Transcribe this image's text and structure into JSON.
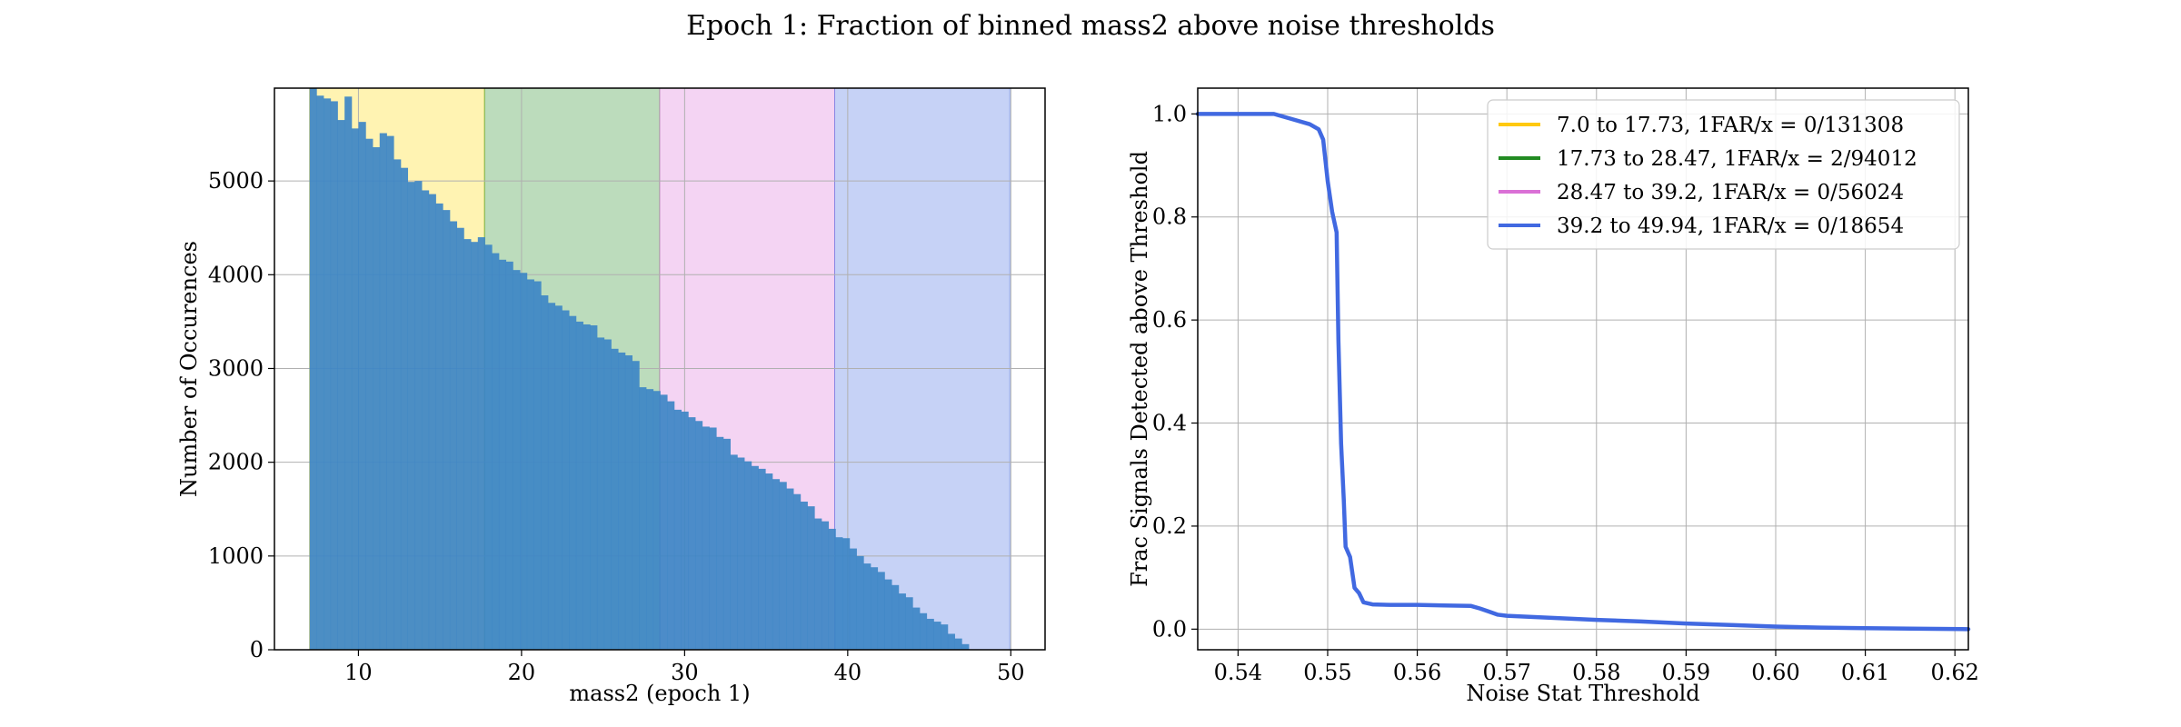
{
  "figure": {
    "title": "Epoch 1: Fraction of binned mass2 above noise thresholds"
  },
  "chart_data": [
    {
      "type": "bar",
      "xlabel": "mass2 (epoch 1)",
      "ylabel": "Number of Occurences",
      "xlim": [
        4.85,
        52.1
      ],
      "ylim": [
        0,
        5990
      ],
      "xticks": [
        10,
        20,
        30,
        40,
        50
      ],
      "yticks": [
        0,
        1000,
        2000,
        3000,
        4000,
        5000
      ],
      "grid": true,
      "bins": [
        {
          "range": [
            7.0,
            17.73
          ],
          "color": "#FFD700"
        },
        {
          "range": [
            17.73,
            28.47
          ],
          "color": "#228B22"
        },
        {
          "range": [
            28.47,
            39.2
          ],
          "color": "#DA70D6"
        },
        {
          "range": [
            39.2,
            49.94
          ],
          "color": "#4169E1"
        }
      ],
      "hist_color": "#3d85c6",
      "bin_edges_start": 7.0,
      "bin_width": 0.43,
      "counts": [
        5990,
        5910,
        5880,
        5850,
        5650,
        5900,
        5560,
        5630,
        5450,
        5360,
        5510,
        5480,
        5230,
        5140,
        4990,
        5000,
        4900,
        4860,
        4760,
        4690,
        4570,
        4500,
        4380,
        4350,
        4400,
        4320,
        4230,
        4160,
        4140,
        4050,
        4020,
        3950,
        3930,
        3780,
        3700,
        3670,
        3620,
        3560,
        3500,
        3470,
        3460,
        3330,
        3310,
        3210,
        3170,
        3140,
        3080,
        2800,
        2780,
        2760,
        2720,
        2650,
        2560,
        2540,
        2480,
        2440,
        2380,
        2370,
        2270,
        2250,
        2080,
        2050,
        2010,
        1960,
        1930,
        1880,
        1820,
        1790,
        1720,
        1660,
        1580,
        1530,
        1400,
        1370,
        1290,
        1200,
        1190,
        1080,
        1000,
        920,
        880,
        830,
        750,
        690,
        600,
        560,
        450,
        390,
        330,
        300,
        270,
        170,
        120,
        60
      ]
    },
    {
      "type": "line",
      "xlabel": "Noise Stat Threshold",
      "ylabel": "Frac Signals Detected above Threshold",
      "xlim": [
        0.5355,
        0.6215
      ],
      "ylim": [
        -0.04,
        1.05
      ],
      "xticks": [
        0.54,
        0.55,
        0.56,
        0.57,
        0.58,
        0.59,
        0.6,
        0.61,
        0.62
      ],
      "xtick_labels": [
        "0.54",
        "0.55",
        "0.56",
        "0.57",
        "0.58",
        "0.59",
        "0.60",
        "0.61",
        "0.62"
      ],
      "yticks": [
        0.0,
        0.2,
        0.4,
        0.6,
        0.8,
        1.0
      ],
      "ytick_labels": [
        "0.0",
        "0.2",
        "0.4",
        "0.6",
        "0.8",
        "1.0"
      ],
      "grid": true,
      "legend_position": "top-right",
      "series": [
        {
          "name": "7.0 to 17.73, 1FAR/x = 0/131308",
          "color": "#FFC90E",
          "x": [
            0.5355,
            0.6215
          ],
          "y": [
            1.0,
            0.0
          ]
        },
        {
          "name": "17.73 to 28.47, 1FAR/x = 2/94012",
          "color": "#228B22",
          "x": [
            0.5355,
            0.6215
          ],
          "y": [
            1.0,
            0.0
          ]
        },
        {
          "name": "28.47 to 39.2, 1FAR/x = 0/56024",
          "color": "#DA70D6",
          "x": [
            0.5355,
            0.6215
          ],
          "y": [
            1.0,
            0.0
          ]
        },
        {
          "name": "39.2 to 49.94, 1FAR/x = 0/18654",
          "color": "#4169E1",
          "x": [
            0.5355,
            0.54,
            0.544,
            0.546,
            0.548,
            0.549,
            0.5495,
            0.55,
            0.5505,
            0.551,
            0.5512,
            0.5515,
            0.5518,
            0.552,
            0.5525,
            0.553,
            0.5535,
            0.554,
            0.555,
            0.557,
            0.56,
            0.563,
            0.566,
            0.567,
            0.568,
            0.569,
            0.57,
            0.575,
            0.58,
            0.585,
            0.59,
            0.595,
            0.6,
            0.605,
            0.61,
            0.615,
            0.6215
          ],
          "y": [
            1.0,
            1.0,
            1.0,
            0.99,
            0.98,
            0.97,
            0.95,
            0.87,
            0.81,
            0.77,
            0.56,
            0.36,
            0.25,
            0.16,
            0.14,
            0.08,
            0.07,
            0.052,
            0.048,
            0.047,
            0.047,
            0.046,
            0.045,
            0.04,
            0.034,
            0.028,
            0.026,
            0.022,
            0.018,
            0.015,
            0.011,
            0.008,
            0.005,
            0.003,
            0.002,
            0.001,
            0.0
          ]
        }
      ]
    }
  ]
}
